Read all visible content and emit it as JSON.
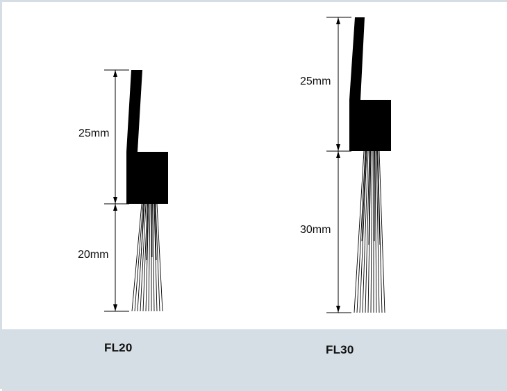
{
  "products": [
    {
      "model": "FL20",
      "dimensions": {
        "holder_height": "25mm",
        "bristle_length": "20mm"
      }
    },
    {
      "model": "FL30",
      "dimensions": {
        "holder_height": "25mm",
        "bristle_length": "30mm"
      }
    }
  ],
  "colors": {
    "footer_background": "#d5dee5",
    "frame_border": "#d6dee5",
    "ink": "#000000"
  }
}
